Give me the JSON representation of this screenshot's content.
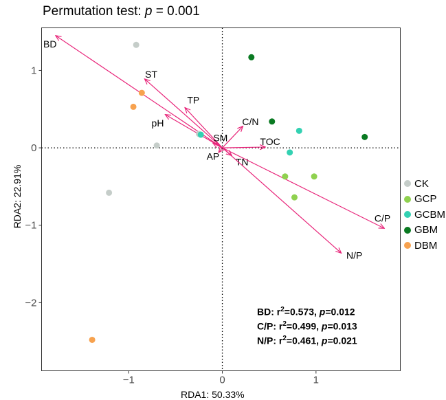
{
  "title": {
    "prefix": "Permutation test: ",
    "p_symbol": "p",
    "suffix": " = 0.001"
  },
  "chart_data": {
    "type": "scatter",
    "xlabel": "RDA1: 50.33%",
    "ylabel": "RDA2: 22.91%",
    "xlim": [
      -1.93,
      1.9
    ],
    "ylim": [
      -2.88,
      1.55
    ],
    "x_ticks": [
      -1,
      0,
      1
    ],
    "x_tick_labels": [
      "−1",
      "0",
      "1"
    ],
    "y_ticks": [
      1,
      0,
      -1,
      -2
    ],
    "y_tick_labels": [
      "1",
      "0",
      "−1",
      "−2"
    ],
    "grid": false,
    "legend_position": "right",
    "reference_lines": {
      "x": 0,
      "y": 0,
      "style": "dotted"
    },
    "series": [
      {
        "name": "CK",
        "color": "#c5cdc9",
        "points": [
          [
            -0.92,
            1.33
          ],
          [
            -0.7,
            0.03
          ],
          [
            -1.21,
            -0.58
          ],
          [
            -0.25,
            0.18
          ]
        ]
      },
      {
        "name": "GCP",
        "color": "#8fd14f",
        "points": [
          [
            0.67,
            -0.37
          ],
          [
            0.98,
            -0.37
          ],
          [
            0.77,
            -0.64
          ]
        ]
      },
      {
        "name": "GCBM",
        "color": "#33d1b2",
        "points": [
          [
            0.82,
            0.22
          ],
          [
            0.72,
            -0.06
          ],
          [
            -0.23,
            0.17
          ]
        ]
      },
      {
        "name": "GBM",
        "color": "#0a7a22",
        "points": [
          [
            0.31,
            1.17
          ],
          [
            0.53,
            0.34
          ],
          [
            1.52,
            0.14
          ]
        ]
      },
      {
        "name": "DBM",
        "color": "#f7a24f",
        "points": [
          [
            -0.86,
            0.71
          ],
          [
            -0.95,
            0.53
          ],
          [
            -1.39,
            -2.48
          ]
        ]
      }
    ],
    "arrow_color": "#e8257a",
    "arrows": [
      {
        "label": "BD",
        "x": -1.78,
        "y": 1.45,
        "lx": -1.84,
        "ly": 1.34
      },
      {
        "label": "ST",
        "x": -0.83,
        "y": 0.89,
        "lx": -0.76,
        "ly": 0.95
      },
      {
        "label": "TP",
        "x": -0.4,
        "y": 0.52,
        "lx": -0.31,
        "ly": 0.62
      },
      {
        "label": "pH",
        "x": -0.61,
        "y": 0.43,
        "lx": -0.69,
        "ly": 0.32
      },
      {
        "label": "C/N",
        "x": 0.22,
        "y": 0.28,
        "lx": 0.3,
        "ly": 0.34
      },
      {
        "label": "SM",
        "x": -0.1,
        "y": 0.06,
        "lx": -0.02,
        "ly": 0.13
      },
      {
        "label": "TOC",
        "x": 0.46,
        "y": 0.01,
        "lx": 0.51,
        "ly": 0.08
      },
      {
        "label": "AP",
        "x": -0.04,
        "y": -0.06,
        "lx": -0.1,
        "ly": -0.11
      },
      {
        "label": "TN",
        "x": 0.1,
        "y": -0.1,
        "lx": 0.21,
        "ly": -0.18
      },
      {
        "label": "C/P",
        "x": 1.73,
        "y": -1.04,
        "lx": 1.71,
        "ly": -0.91
      },
      {
        "label": "N/P",
        "x": 1.27,
        "y": -1.36,
        "lx": 1.41,
        "ly": -1.39
      }
    ],
    "annotations": [
      {
        "var": "BD: r",
        "sup": "2",
        "mid": "=0.573, ",
        "p": "p",
        "val": "=0.012"
      },
      {
        "var": "C/P: r",
        "sup": "2",
        "mid": "=0.499, ",
        "p": "p",
        "val": "=0.013"
      },
      {
        "var": "N/P: r",
        "sup": "2",
        "mid": "=0.461, ",
        "p": "p",
        "val": "=0.021"
      }
    ]
  }
}
